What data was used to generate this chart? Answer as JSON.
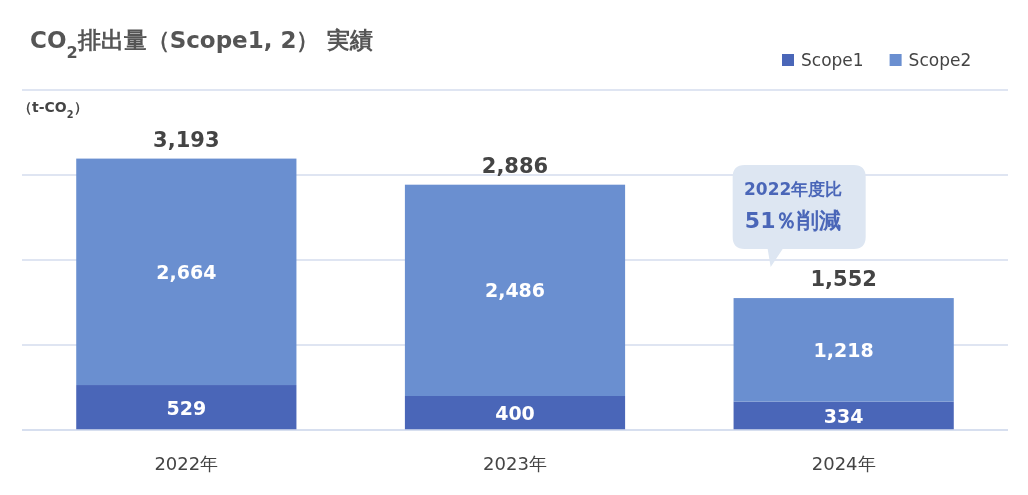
{
  "chart_data": {
    "type": "bar",
    "title": "CO$_{2}$排出量（Scope1, 2） 実績",
    "ylabel": "（t-CO$_{2}$）",
    "categories": [
      "2022年",
      "2023年",
      "2024年"
    ],
    "series": [
      {
        "name": "Scope1",
        "color": "#4a66b8",
        "values": [
          529,
          400,
          334
        ],
        "value_labels": [
          "529",
          "400",
          "334"
        ]
      },
      {
        "name": "Scope2",
        "color": "#6a8fd0",
        "values": [
          2664,
          2486,
          1218
        ],
        "value_labels": [
          "2,664",
          "2,486",
          "1,218"
        ]
      }
    ],
    "stacked": true,
    "totals": [
      "3,193",
      "2,886",
      "1,552"
    ],
    "ylim": [
      0,
      4000
    ],
    "yticks": [
      {
        "value": 0,
        "label": null
      },
      {
        "value": 1000,
        "label": null
      },
      {
        "value": 2000,
        "label": null
      },
      {
        "value": 3000,
        "label": null
      },
      {
        "value": 4000,
        "label": null
      }
    ],
    "tick_labels": "x",
    "grid": "y",
    "legend": "top right",
    "annotations": [
      "2022年度比",
      "51％削減"
    ]
  }
}
